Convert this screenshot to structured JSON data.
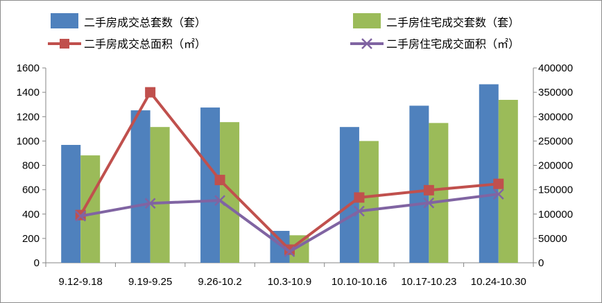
{
  "chart_data": {
    "type": "bar",
    "categories": [
      "9.12-9.18",
      "9.19-9.25",
      "9.26-10.2",
      "10.3-10.9",
      "10.10-10.16",
      "10.17-10.23",
      "10.24-10.30"
    ],
    "series": [
      {
        "name": "二手房成交总套数（套）",
        "type": "bar",
        "axis": "left",
        "color": "#4f81bd",
        "values": [
          968,
          1252,
          1275,
          262,
          1115,
          1290,
          1466
        ]
      },
      {
        "name": "二手房住宅成交套数（套）",
        "type": "bar",
        "axis": "left",
        "color": "#9bbb59",
        "values": [
          882,
          1115,
          1155,
          226,
          1000,
          1148,
          1338
        ]
      },
      {
        "name": "二手房成交总面积（㎡）",
        "type": "line",
        "axis": "right",
        "color": "#c0504d",
        "marker": "square",
        "values": [
          98000,
          350000,
          170000,
          27000,
          134000,
          149000,
          162000
        ]
      },
      {
        "name": "二手房住宅成交面积（㎡）",
        "type": "line",
        "axis": "right",
        "color": "#8064a2",
        "marker": "x",
        "values": [
          96000,
          122000,
          128000,
          23000,
          106000,
          123000,
          141000
        ]
      }
    ],
    "y_left": {
      "min": 0,
      "max": 1600,
      "ticks": [
        "0",
        "200",
        "400",
        "600",
        "800",
        "1000",
        "1200",
        "1400",
        "1600"
      ]
    },
    "y_right": {
      "min": 0,
      "max": 400000,
      "ticks": [
        "0",
        "50000",
        "100000",
        "150000",
        "200000",
        "250000",
        "300000",
        "350000",
        "400000"
      ]
    },
    "grid": false,
    "legend_position": "top"
  }
}
